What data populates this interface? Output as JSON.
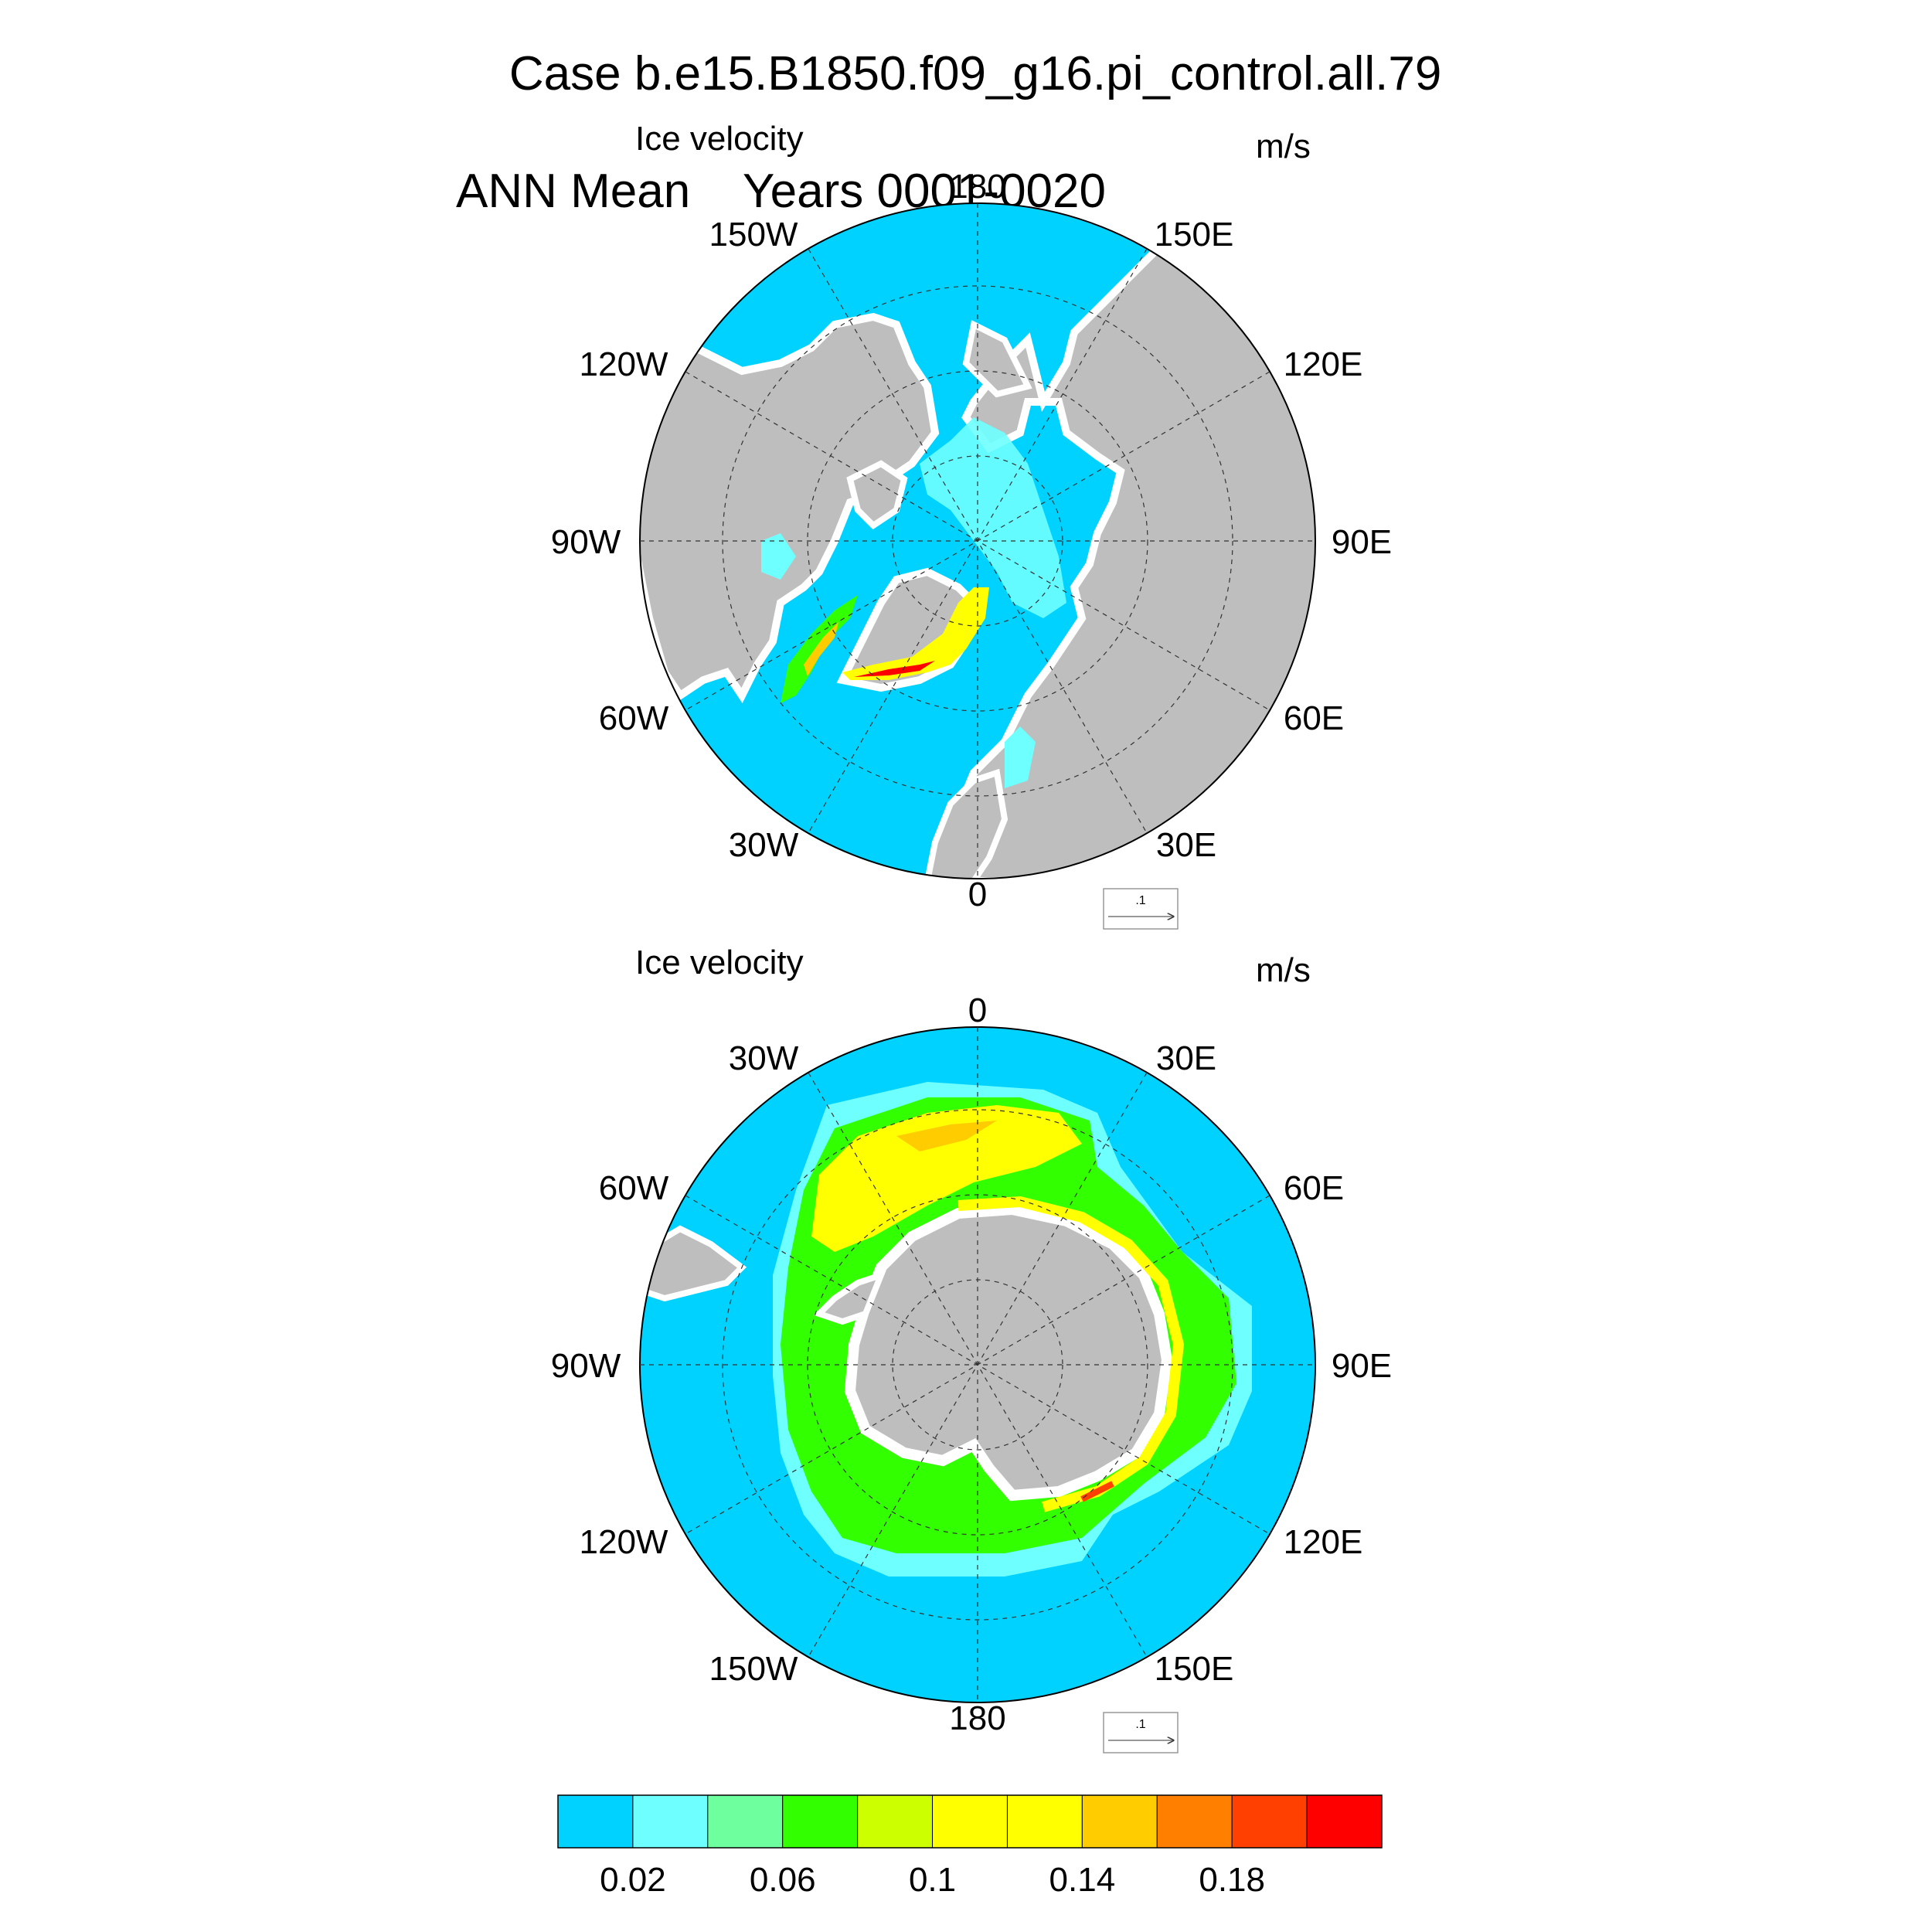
{
  "title": {
    "line1": "  Case b.e15.B1850.f09_g16.pi_control.all.79",
    "line2": "ANN Mean    Years 0001-0020"
  },
  "colors": {
    "ocean_low": "#00d2ff",
    "land": "#bebebe",
    "land_edge": "#ffffff"
  },
  "panels": [
    {
      "id": "north",
      "field_label": "Ice velocity",
      "units": "m/s",
      "lon_labels": {
        "top": "180",
        "bottom": "0",
        "left": "90W",
        "right": "90E",
        "upper_left_1": "150W",
        "upper_left_2": "120W",
        "lower_left_1": "60W",
        "lower_left_2": "30W",
        "upper_right_1": "150E",
        "upper_right_2": "120E",
        "lower_right_1": "60E",
        "lower_right_2": "30E"
      },
      "ref_vector": ".1"
    },
    {
      "id": "south",
      "field_label": "Ice velocity",
      "units": "m/s",
      "lon_labels": {
        "top": "0",
        "bottom": "180",
        "left": "90W",
        "right": "90E",
        "upper_left_1": "30W",
        "upper_left_2": "60W",
        "lower_left_1": "120W",
        "lower_left_2": "150W",
        "upper_right_1": "30E",
        "upper_right_2": "60E",
        "lower_right_1": "120E",
        "lower_right_2": "150E"
      },
      "ref_vector": ".1"
    }
  ],
  "colorbar": {
    "colors": [
      "#00d2ff",
      "#6effff",
      "#6eff9e",
      "#32ff00",
      "#ccff00",
      "#ffff00",
      "#ffff00",
      "#ffcc00",
      "#ff8000",
      "#ff4000",
      "#ff0000"
    ],
    "tick_labels": [
      "0.02",
      "0.06",
      "0.1",
      "0.14",
      "0.18"
    ]
  }
}
